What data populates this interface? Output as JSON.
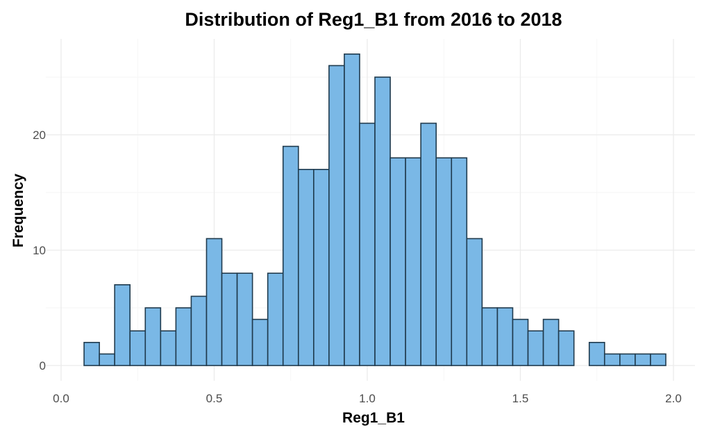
{
  "chart_data": {
    "type": "bar",
    "title": "Distribution of Reg1_B1 from 2016 to 2018",
    "xlabel": "Reg1_B1",
    "ylabel": "Frequency",
    "xlim": [
      0.0,
      2.05
    ],
    "ylim": [
      0,
      28.5
    ],
    "x_ticks": [
      {
        "value": 0.0,
        "label": "0.0"
      },
      {
        "value": 0.5,
        "label": "0.5"
      },
      {
        "value": 1.0,
        "label": "1.0"
      },
      {
        "value": 1.5,
        "label": "1.5"
      },
      {
        "value": 2.0,
        "label": "2.0"
      }
    ],
    "y_ticks": [
      {
        "value": 0,
        "label": "0"
      },
      {
        "value": 10,
        "label": "10"
      },
      {
        "value": 20,
        "label": "20"
      }
    ],
    "bin_width": 0.05,
    "bin_starts": [
      0.075,
      0.125,
      0.175,
      0.225,
      0.275,
      0.325,
      0.375,
      0.425,
      0.475,
      0.525,
      0.575,
      0.625,
      0.675,
      0.725,
      0.775,
      0.825,
      0.875,
      0.925,
      0.975,
      1.025,
      1.075,
      1.125,
      1.175,
      1.225,
      1.275,
      1.325,
      1.375,
      1.425,
      1.475,
      1.525,
      1.575,
      1.625,
      1.675,
      1.725,
      1.775,
      1.825,
      1.875,
      1.925
    ],
    "values": [
      2,
      1,
      7,
      3,
      5,
      3,
      5,
      6,
      11,
      8,
      8,
      4,
      8,
      19,
      17,
      17,
      26,
      27,
      21,
      25,
      18,
      18,
      21,
      18,
      18,
      11,
      5,
      5,
      4,
      3,
      4,
      3,
      0,
      2,
      1,
      1,
      1,
      1
    ],
    "grid": true,
    "legend": "none",
    "colors": {
      "fill": "#7ab8e6",
      "stroke": "#1f3a4d"
    }
  }
}
